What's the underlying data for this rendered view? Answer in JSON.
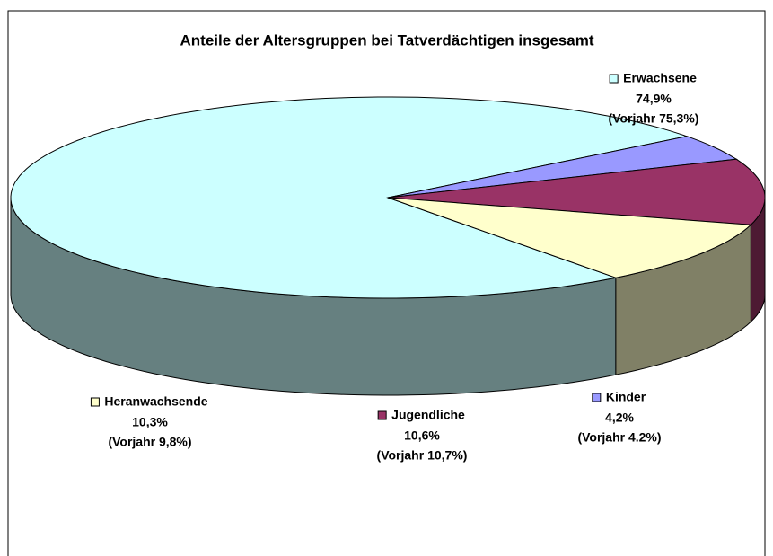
{
  "chart_data": {
    "type": "pie",
    "title": "Anteile der Altersgruppen bei Tatverdächtigen insgesamt",
    "categories": [
      "Erwachsene",
      "Kinder",
      "Jugendliche",
      "Heranwachsende"
    ],
    "values": [
      74.9,
      4.2,
      10.6,
      10.3
    ],
    "value_labels": [
      "74,9%",
      "4,2%",
      "10,6%",
      "10,3%"
    ],
    "annotations": [
      "(Vorjahr 75,3%)",
      "(Vorjahr 4.2%)",
      "(Vorjahr 10,7%)",
      "(Vorjahr 9,8%)"
    ],
    "colors": [
      "#ccffff",
      "#9999ff",
      "#993366",
      "#ffffcc"
    ]
  }
}
